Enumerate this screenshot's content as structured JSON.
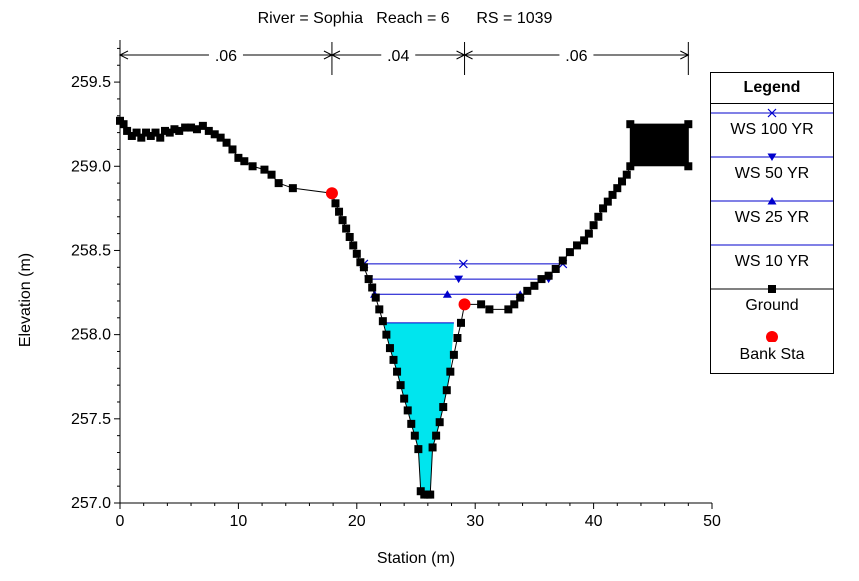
{
  "chart_data": {
    "type": "line",
    "title": "River = Sophia   Reach = 6      RS = 1039",
    "xlabel": "Station (m)",
    "ylabel": "Elevation (m)",
    "xlim": [
      0,
      50
    ],
    "ylim": [
      257.0,
      259.75
    ],
    "x_ticks": [
      "0",
      "10",
      "20",
      "30",
      "40",
      "50"
    ],
    "y_ticks": [
      "257.0",
      "257.5",
      "258.0",
      "258.5",
      "259.0",
      "259.5"
    ],
    "grid": false,
    "legend_position": "right",
    "legend_title": "Legend",
    "roughness": [
      {
        "label": ".06",
        "x_start": 0,
        "x_end": 17.9
      },
      {
        "label": ".04",
        "x_start": 17.9,
        "x_end": 29.1
      },
      {
        "label": ".06",
        "x_start": 29.1,
        "x_end": 48
      }
    ],
    "series": [
      {
        "name": "WS 100 YR",
        "type": "ws",
        "elevation": 258.42,
        "x_start": 20.6,
        "x_end": 37.4,
        "color": "#0000cc",
        "marker": "x"
      },
      {
        "name": "WS 50 YR",
        "type": "ws",
        "elevation": 258.33,
        "x_start": 21.0,
        "x_end": 36.2,
        "color": "#0000cc",
        "marker": "triangle-down"
      },
      {
        "name": "WS 25 YR",
        "type": "ws",
        "elevation": 258.24,
        "x_start": 21.5,
        "x_end": 33.8,
        "color": "#0000cc",
        "marker": "triangle-up"
      },
      {
        "name": "WS 10 YR",
        "type": "ws",
        "elevation": 258.07,
        "x_start": 22.3,
        "x_end": 28.2,
        "color": "#0000cc",
        "marker": "none",
        "fill": "#00e5ee"
      },
      {
        "name": "Ground",
        "type": "ground",
        "color": "#000000",
        "marker": "square",
        "points": [
          [
            0,
            259.27
          ],
          [
            0.3,
            259.25
          ],
          [
            0.6,
            259.21
          ],
          [
            1.0,
            259.18
          ],
          [
            1.4,
            259.2
          ],
          [
            1.8,
            259.17
          ],
          [
            2.2,
            259.2
          ],
          [
            2.6,
            259.18
          ],
          [
            3.0,
            259.2
          ],
          [
            3.4,
            259.17
          ],
          [
            3.8,
            259.21
          ],
          [
            4.2,
            259.2
          ],
          [
            4.6,
            259.22
          ],
          [
            5.0,
            259.21
          ],
          [
            5.5,
            259.23
          ],
          [
            6.0,
            259.23
          ],
          [
            6.5,
            259.22
          ],
          [
            7.0,
            259.24
          ],
          [
            7.5,
            259.21
          ],
          [
            8.0,
            259.19
          ],
          [
            8.5,
            259.17
          ],
          [
            9.0,
            259.14
          ],
          [
            9.5,
            259.1
          ],
          [
            10.0,
            259.05
          ],
          [
            10.5,
            259.03
          ],
          [
            11.2,
            259.0
          ],
          [
            12.2,
            258.98
          ],
          [
            12.8,
            258.95
          ],
          [
            13.4,
            258.9
          ],
          [
            14.6,
            258.87
          ],
          [
            17.9,
            258.84
          ],
          [
            18.2,
            258.78
          ],
          [
            18.5,
            258.73
          ],
          [
            18.8,
            258.68
          ],
          [
            19.1,
            258.63
          ],
          [
            19.4,
            258.58
          ],
          [
            19.7,
            258.53
          ],
          [
            20.0,
            258.48
          ],
          [
            20.3,
            258.43
          ],
          [
            20.6,
            258.4
          ],
          [
            21.0,
            258.33
          ],
          [
            21.3,
            258.28
          ],
          [
            21.6,
            258.22
          ],
          [
            21.9,
            258.15
          ],
          [
            22.2,
            258.08
          ],
          [
            22.5,
            258.0
          ],
          [
            22.8,
            257.92
          ],
          [
            23.1,
            257.85
          ],
          [
            23.4,
            257.78
          ],
          [
            23.7,
            257.7
          ],
          [
            24.0,
            257.62
          ],
          [
            24.3,
            257.55
          ],
          [
            24.6,
            257.47
          ],
          [
            24.9,
            257.4
          ],
          [
            25.2,
            257.32
          ],
          [
            25.4,
            257.07
          ],
          [
            25.7,
            257.05
          ],
          [
            26.0,
            257.05
          ],
          [
            26.2,
            257.05
          ],
          [
            26.4,
            257.33
          ],
          [
            26.7,
            257.4
          ],
          [
            27.0,
            257.48
          ],
          [
            27.3,
            257.57
          ],
          [
            27.6,
            257.67
          ],
          [
            27.9,
            257.78
          ],
          [
            28.2,
            257.88
          ],
          [
            28.5,
            257.98
          ],
          [
            28.8,
            258.07
          ],
          [
            29.1,
            258.18
          ],
          [
            30.5,
            258.18
          ],
          [
            31.2,
            258.15
          ],
          [
            32.8,
            258.15
          ],
          [
            33.3,
            258.18
          ],
          [
            33.8,
            258.22
          ],
          [
            34.4,
            258.26
          ],
          [
            35.0,
            258.29
          ],
          [
            35.6,
            258.33
          ],
          [
            36.2,
            258.35
          ],
          [
            36.8,
            258.39
          ],
          [
            37.4,
            258.44
          ],
          [
            38.0,
            258.49
          ],
          [
            38.6,
            258.53
          ],
          [
            39.2,
            258.56
          ],
          [
            39.6,
            258.6
          ],
          [
            40.0,
            258.65
          ],
          [
            40.4,
            258.7
          ],
          [
            40.8,
            258.75
          ],
          [
            41.2,
            258.79
          ],
          [
            41.6,
            258.83
          ],
          [
            42.0,
            258.87
          ],
          [
            42.4,
            258.91
          ],
          [
            42.8,
            258.95
          ],
          [
            43.1,
            259.0
          ],
          [
            43.1,
            259.25
          ],
          [
            48.0,
            259.25
          ],
          [
            48.0,
            259.0
          ]
        ]
      },
      {
        "name": "Bank Sta",
        "type": "bank",
        "color": "#ff0000",
        "marker": "circle",
        "points": [
          [
            17.9,
            258.84
          ],
          [
            29.1,
            258.18
          ]
        ]
      }
    ]
  }
}
